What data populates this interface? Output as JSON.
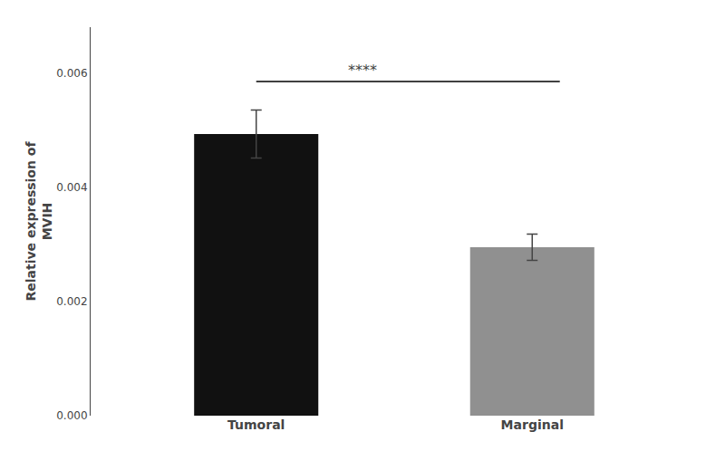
{
  "chart_data": {
    "type": "bar",
    "categories": [
      "Tumoral",
      "Marginal"
    ],
    "values": [
      0.00493,
      0.00295
    ],
    "errors": [
      0.00042,
      0.00023
    ],
    "colors": [
      "#111111",
      "#909090"
    ],
    "ylabel": "Relative expression of\nMVIH",
    "ylim": [
      0,
      0.0068
    ],
    "yticks": [
      {
        "value": 0,
        "label": "0.000"
      },
      {
        "value": 0.002,
        "label": "0.002"
      },
      {
        "value": 0.004,
        "label": "0.004"
      },
      {
        "value": 0.006,
        "label": "0.006"
      }
    ],
    "grid": false,
    "annotations": [
      {
        "text": "****",
        "y": 0.00585,
        "from": "Tumoral",
        "to": "Marginal"
      }
    ]
  }
}
